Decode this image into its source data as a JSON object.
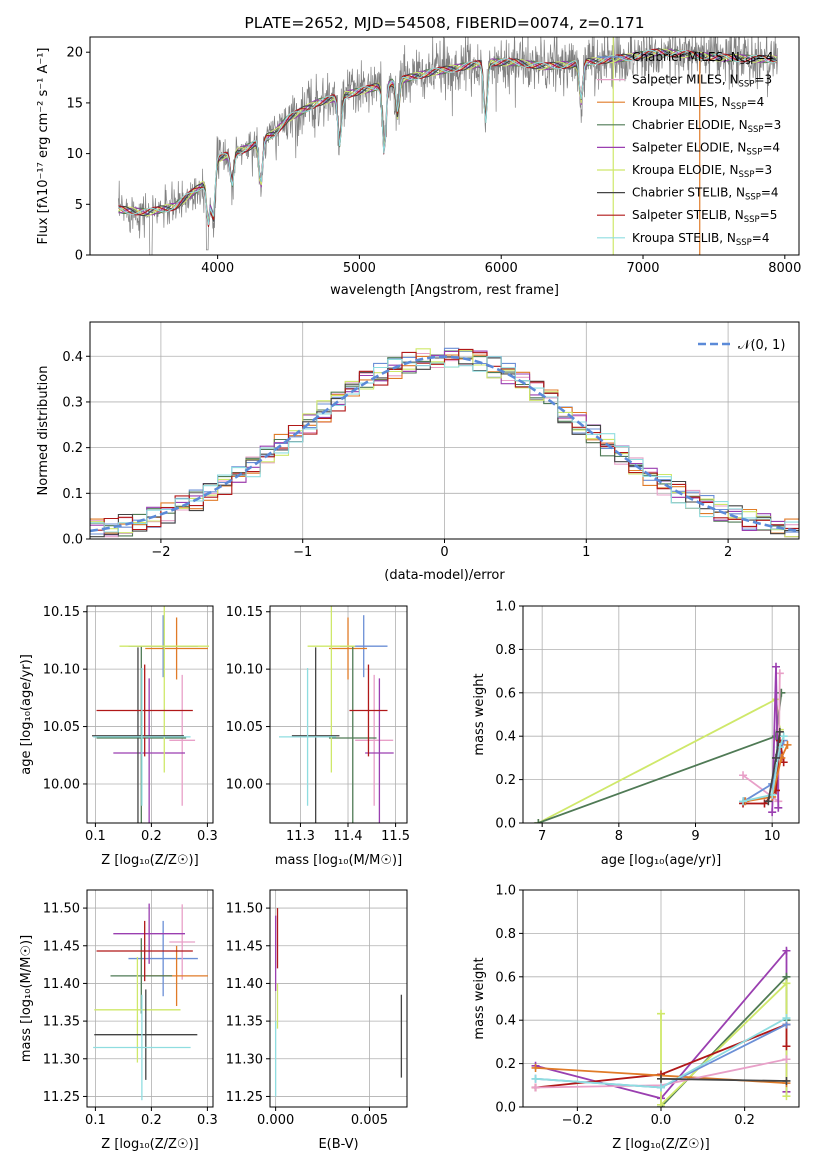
{
  "chart_data": [
    {
      "type": "line",
      "title": "PLATE=2652, MJD=54508, FIBERID=0074, z=0.171",
      "xlabel": "wavelength [Angstrom, rest frame]",
      "ylabel": "Flux [fλ10⁻¹⁷ erg cm⁻² s⁻¹ A⁻¹]",
      "xlim": [
        3100,
        8100
      ],
      "ylim": [
        0,
        21.5
      ],
      "xticks": [
        "4000",
        "5000",
        "6000",
        "7000",
        "8000"
      ],
      "yticks": [
        "0",
        "5",
        "10",
        "15",
        "20"
      ],
      "legend_position": "top-right",
      "legend": [
        {
          "label": "Chabrier MILES, N",
          "sub": "SSP",
          "tail": "=4",
          "color": "#6b8fd6"
        },
        {
          "label": "Salpeter MILES, N",
          "sub": "SSP",
          "tail": "=3",
          "color": "#e8a0c8"
        },
        {
          "label": "Kroupa MILES, N",
          "sub": "SSP",
          "tail": "=4",
          "color": "#e07b28"
        },
        {
          "label": "Chabrier ELODIE, N",
          "sub": "SSP",
          "tail": "=3",
          "color": "#4f7a55"
        },
        {
          "label": "Salpeter ELODIE, N",
          "sub": "SSP",
          "tail": "=4",
          "color": "#9a3fb0"
        },
        {
          "label": "Kroupa ELODIE, N",
          "sub": "SSP",
          "tail": "=3",
          "color": "#cfe86a"
        },
        {
          "label": "Chabrier STELIB, N",
          "sub": "SSP",
          "tail": "=4",
          "color": "#444444"
        },
        {
          "label": "Salpeter STELIB, N",
          "sub": "SSP",
          "tail": "=5",
          "color": "#b01818"
        },
        {
          "label": "Kroupa STELIB, N",
          "sub": "SSP",
          "tail": "=4",
          "color": "#8fdde0"
        }
      ],
      "continuum_knots": {
        "x": [
          3300,
          3500,
          3700,
          3900,
          4000,
          4200,
          4400,
          4500,
          4700,
          4900,
          5100,
          5300,
          5500,
          5700,
          5900,
          6100,
          6300,
          6500,
          6700,
          6900,
          7100,
          7300,
          7500,
          7700,
          7900
        ],
        "y": [
          4.5,
          4.2,
          4.8,
          7.0,
          9.5,
          10.5,
          12.0,
          13.5,
          15.0,
          15.8,
          16.5,
          17.3,
          18.0,
          18.5,
          19.0,
          19.0,
          18.6,
          18.8,
          19.2,
          19.5,
          20.0,
          19.8,
          19.5,
          19.4,
          19.3
        ]
      }
    },
    {
      "type": "bar",
      "xlabel": "(data-model)/error",
      "ylabel": "Normed distribution",
      "xlim": [
        -2.5,
        2.5
      ],
      "ylim": [
        0,
        0.475
      ],
      "xticks": [
        "−2",
        "−1",
        "0",
        "1",
        "2"
      ],
      "yticks": [
        "0.0",
        "0.1",
        "0.2",
        "0.3",
        "0.4"
      ],
      "legend": "𝒩(0, 1)",
      "legend_position": "top-right",
      "bin_width": 0.1,
      "series_colors": [
        "#6b8fd6",
        "#e8a0c8",
        "#e07b28",
        "#4f7a55",
        "#9a3fb0",
        "#cfe86a",
        "#444444",
        "#b01818",
        "#8fdde0"
      ],
      "normal_curve_color": "#5b8ad8"
    },
    {
      "type": "scatter",
      "xlabel": "Z [log₁₀(Z/Z☉)]",
      "ylabel": "age [log₁₀(age/yr)]",
      "xlim": [
        0.085,
        0.31
      ],
      "ylim": [
        9.966,
        10.155
      ],
      "xticks": [
        "0.1",
        "0.2",
        "0.3"
      ],
      "yticks": [
        "10.00",
        "10.05",
        "10.10",
        "10.15"
      ],
      "points": [
        {
          "x": 0.221,
          "xerr": 0.062,
          "y": 10.12,
          "yerr": 0.027,
          "color": "#6b8fd6"
        },
        {
          "x": 0.255,
          "xerr": 0.023,
          "y": 10.038,
          "yerr": 0.057,
          "color": "#e8a0c8"
        },
        {
          "x": 0.245,
          "xerr": 0.056,
          "y": 10.118,
          "yerr": 0.027,
          "color": "#e07b28"
        },
        {
          "x": 0.182,
          "xerr": 0.08,
          "y": 10.04,
          "yerr": 0.08,
          "color": "#4f7a55"
        },
        {
          "x": 0.196,
          "xerr": 0.064,
          "y": 10.027,
          "yerr": 0.065,
          "color": "#9a3fb0"
        },
        {
          "x": 0.223,
          "xerr": 0.08,
          "y": 10.12,
          "yerr": 0.11,
          "color": "#cfe86a"
        },
        {
          "x": 0.176,
          "xerr": 0.082,
          "y": 10.042,
          "yerr": 0.077,
          "color": "#444444"
        },
        {
          "x": 0.188,
          "xerr": 0.086,
          "y": 10.064,
          "yerr": 0.04,
          "color": "#b01818"
        },
        {
          "x": 0.183,
          "xerr": 0.087,
          "y": 10.041,
          "yerr": 0.06,
          "color": "#8fdde0"
        }
      ]
    },
    {
      "type": "scatter",
      "xlabel": "mass [log₁₀(M/M☉)]",
      "ylabel": "",
      "xlim": [
        11.236,
        11.524
      ],
      "ylim": [
        9.966,
        10.155
      ],
      "xticks": [
        "11.3",
        "11.4",
        "11.5"
      ],
      "yticks": [
        "10.00",
        "10.05",
        "10.10",
        "10.15"
      ],
      "points": [
        {
          "x": 11.433,
          "xerr": 0.05,
          "y": 10.12,
          "yerr": 0.027,
          "color": "#6b8fd6"
        },
        {
          "x": 11.455,
          "xerr": 0.04,
          "y": 10.038,
          "yerr": 0.057,
          "color": "#e8a0c8"
        },
        {
          "x": 11.4,
          "xerr": 0.04,
          "y": 10.118,
          "yerr": 0.027,
          "color": "#e07b28"
        },
        {
          "x": 11.41,
          "xerr": 0.05,
          "y": 10.04,
          "yerr": 0.08,
          "color": "#4f7a55"
        },
        {
          "x": 11.466,
          "xerr": 0.03,
          "y": 10.027,
          "yerr": 0.065,
          "color": "#9a3fb0"
        },
        {
          "x": 11.365,
          "xerr": 0.05,
          "y": 10.12,
          "yerr": 0.11,
          "color": "#cfe86a"
        },
        {
          "x": 11.332,
          "xerr": 0.05,
          "y": 10.042,
          "yerr": 0.077,
          "color": "#444444"
        },
        {
          "x": 11.443,
          "xerr": 0.04,
          "y": 10.064,
          "yerr": 0.04,
          "color": "#b01818"
        },
        {
          "x": 11.315,
          "xerr": 0.06,
          "y": 10.041,
          "yerr": 0.06,
          "color": "#8fdde0"
        }
      ]
    },
    {
      "type": "line",
      "xlabel": "age [log₁₀(age/yr)]",
      "ylabel": "mass weight",
      "xlim": [
        6.75,
        10.35
      ],
      "ylim": [
        0,
        1
      ],
      "xticks": [
        "7",
        "8",
        "9",
        "10"
      ],
      "yticks": [
        "0.0",
        "0.2",
        "0.4",
        "0.6",
        "0.8",
        "1.0"
      ],
      "series": [
        {
          "color": "#cfe86a",
          "x": [
            6.95,
            10.05,
            10.1
          ],
          "y": [
            0.0,
            0.57,
            0.43
          ]
        },
        {
          "color": "#4f7a55",
          "x": [
            6.95,
            10.05,
            10.12
          ],
          "y": [
            0.0,
            0.4,
            0.6
          ]
        },
        {
          "color": "#e8a0c8",
          "x": [
            9.62,
            10.08,
            10.1
          ],
          "y": [
            0.22,
            0.1,
            0.69
          ]
        },
        {
          "color": "#9a3fb0",
          "x": [
            10.0,
            10.05,
            10.08
          ],
          "y": [
            0.05,
            0.72,
            0.07
          ]
        },
        {
          "color": "#6b8fd6",
          "x": [
            9.63,
            10.0,
            10.1,
            10.15
          ],
          "y": [
            0.1,
            0.18,
            0.32,
            0.38
          ]
        },
        {
          "color": "#b01818",
          "x": [
            9.62,
            9.9,
            10.05,
            10.1,
            10.15
          ],
          "y": [
            0.09,
            0.09,
            0.15,
            0.38,
            0.28
          ]
        },
        {
          "color": "#e07b28",
          "x": [
            9.65,
            10.0,
            10.12,
            10.2
          ],
          "y": [
            0.1,
            0.12,
            0.3,
            0.36
          ]
        },
        {
          "color": "#8fdde0",
          "x": [
            9.62,
            10.0,
            10.1,
            10.15
          ],
          "y": [
            0.1,
            0.13,
            0.35,
            0.4
          ]
        },
        {
          "color": "#444444",
          "x": [
            9.95,
            10.05,
            10.1
          ],
          "y": [
            0.1,
            0.3,
            0.42
          ]
        }
      ]
    },
    {
      "type": "scatter",
      "xlabel": "Z [log₁₀(Z/Z☉)]",
      "ylabel": "mass [log₁₀(M/M☉)]",
      "xlim": [
        0.085,
        0.31
      ],
      "ylim": [
        11.236,
        11.524
      ],
      "xticks": [
        "0.1",
        "0.2",
        "0.3"
      ],
      "yticks": [
        "11.25",
        "11.30",
        "11.35",
        "11.40",
        "11.45",
        "11.50"
      ],
      "points": [
        {
          "x": 0.221,
          "xerr": 0.062,
          "y": 11.433,
          "yerr": 0.05,
          "color": "#6b8fd6"
        },
        {
          "x": 0.255,
          "xerr": 0.023,
          "y": 11.455,
          "yerr": 0.05,
          "color": "#e8a0c8"
        },
        {
          "x": 0.245,
          "xerr": 0.056,
          "y": 11.41,
          "yerr": 0.04,
          "color": "#e07b28"
        },
        {
          "x": 0.182,
          "xerr": 0.055,
          "y": 11.41,
          "yerr": 0.05,
          "color": "#4f7a55"
        },
        {
          "x": 0.196,
          "xerr": 0.064,
          "y": 11.466,
          "yerr": 0.04,
          "color": "#9a3fb0"
        },
        {
          "x": 0.175,
          "xerr": 0.077,
          "y": 11.365,
          "yerr": 0.07,
          "color": "#cfe86a"
        },
        {
          "x": 0.19,
          "xerr": 0.092,
          "y": 11.332,
          "yerr": 0.06,
          "color": "#444444"
        },
        {
          "x": 0.188,
          "xerr": 0.086,
          "y": 11.443,
          "yerr": 0.04,
          "color": "#b01818"
        },
        {
          "x": 0.183,
          "xerr": 0.087,
          "y": 11.315,
          "yerr": 0.07,
          "color": "#8fdde0"
        }
      ]
    },
    {
      "type": "scatter",
      "xlabel": "E(B-V)",
      "ylabel": "",
      "xlim": [
        -0.0003,
        0.007
      ],
      "ylim": [
        11.236,
        11.524
      ],
      "xticks": [
        "0.000",
        "0.005"
      ],
      "yticks": [
        "11.25",
        "11.30",
        "11.35",
        "11.40",
        "11.45",
        "11.50"
      ],
      "points": [
        {
          "x": 0.0,
          "y": 11.44,
          "yerr": 0.05,
          "color": "#9a3fb0"
        },
        {
          "x": 0.0001,
          "y": 11.46,
          "yerr": 0.04,
          "color": "#b01818"
        },
        {
          "x": 0.0001,
          "y": 11.37,
          "yerr": 0.03,
          "color": "#cfe86a"
        },
        {
          "x": 0.0,
          "y": 11.3,
          "yerr": 0.05,
          "color": "#8fdde0"
        },
        {
          "x": 0.0067,
          "y": 11.33,
          "yerr": 0.055,
          "color": "#444444"
        }
      ]
    },
    {
      "type": "line",
      "xlabel": "Z [log₁₀(Z/Z☉)]",
      "ylabel": "mass weight",
      "xlim": [
        -0.33,
        0.33
      ],
      "ylim": [
        0,
        1
      ],
      "xticks": [
        "−0.2",
        "0.0",
        "0.2"
      ],
      "yticks": [
        "0.0",
        "0.2",
        "0.4",
        "0.6",
        "0.8",
        "1.0"
      ],
      "series": [
        {
          "color": "#9a3fb0",
          "x": [
            -0.3,
            0.0,
            0.3,
            0.3
          ],
          "y": [
            0.19,
            0.04,
            0.72,
            0.07
          ]
        },
        {
          "color": "#4f7a55",
          "x": [
            0.0,
            0.3,
            0.3
          ],
          "y": [
            0.0,
            0.6,
            0.4
          ]
        },
        {
          "color": "#cfe86a",
          "x": [
            0.0,
            0.0,
            0.3,
            0.3
          ],
          "y": [
            0.43,
            0.01,
            0.57,
            0.05
          ]
        },
        {
          "color": "#b01818",
          "x": [
            -0.3,
            0.0,
            0.3,
            0.3
          ],
          "y": [
            0.09,
            0.15,
            0.38,
            0.28
          ]
        },
        {
          "color": "#e07b28",
          "x": [
            -0.3,
            0.3
          ],
          "y": [
            0.18,
            0.11
          ]
        },
        {
          "color": "#e8a0c8",
          "x": [
            -0.3,
            0.0,
            0.3
          ],
          "y": [
            0.09,
            0.1,
            0.22
          ]
        },
        {
          "color": "#6b8fd6",
          "x": [
            -0.3,
            0.0,
            0.3
          ],
          "y": [
            0.13,
            0.09,
            0.38
          ]
        },
        {
          "color": "#8fdde0",
          "x": [
            -0.3,
            0.0,
            0.3
          ],
          "y": [
            0.13,
            0.09,
            0.41
          ]
        },
        {
          "color": "#444444",
          "x": [
            0.0,
            0.3
          ],
          "y": [
            0.13,
            0.12
          ]
        }
      ]
    }
  ]
}
